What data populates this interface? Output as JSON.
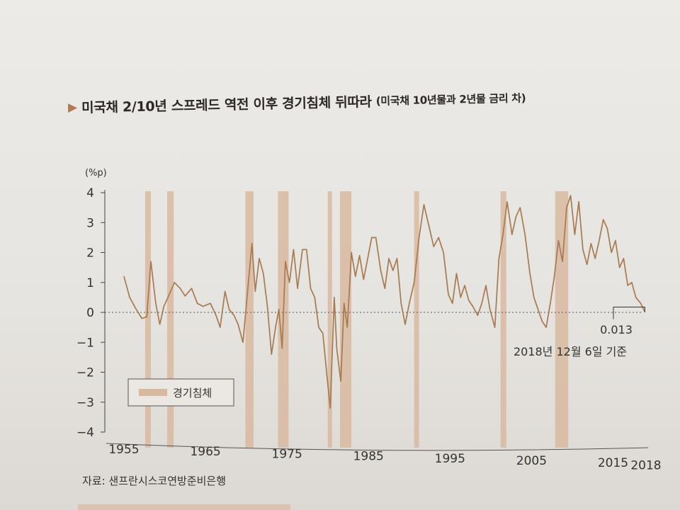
{
  "title": {
    "marker": "▶",
    "main": "미국채 2/10년 스프레드 역전 이후 경기침체 뒤따라",
    "sub": "(미국채 10년물과 2년물 금리 차)"
  },
  "source": "자료: 샌프란시스코연방준비은행",
  "chart_data": {
    "type": "line",
    "title": "미국채 2/10년 스프레드 역전 이후 경기침체 뒤따라",
    "subtitle": "(미국채 10년물과 2년물 금리 차)",
    "unit_label": "(%p)",
    "ylim": [
      -4,
      4
    ],
    "xlim": [
      1955,
      2018
    ],
    "yticks": [
      "4",
      "3",
      "2",
      "1",
      "0",
      "−1",
      "−2",
      "−3",
      "−4"
    ],
    "ytick_values": [
      4,
      3,
      2,
      1,
      0,
      -1,
      -2,
      -3,
      -4
    ],
    "xticks": [
      "1955",
      "1965",
      "1975",
      "1985",
      "1995",
      "2005",
      "2015",
      "2018"
    ],
    "xtick_values": [
      1955,
      1965,
      1975,
      1985,
      1995,
      2005,
      2015,
      2018
    ],
    "zero_line": "dotted",
    "legend": {
      "label": "경기침체",
      "placement": "bottom-left"
    },
    "annotation": {
      "value": "0.013",
      "note": "2018년 12월 6일 기준",
      "x": 2018.9,
      "y": 0.013
    },
    "colors": {
      "line": "#a77a4f",
      "recession": "#d8b9a0",
      "axis": "#444444"
    },
    "recessions": [
      [
        1957.6,
        1958.3
      ],
      [
        1960.3,
        1961.1
      ],
      [
        1969.9,
        1970.9
      ],
      [
        1973.9,
        1975.2
      ],
      [
        1980.0,
        1980.5
      ],
      [
        1981.5,
        1982.9
      ],
      [
        1990.6,
        1991.2
      ],
      [
        2001.2,
        2001.9
      ],
      [
        2007.9,
        2009.5
      ]
    ],
    "series": [
      {
        "x": [
          1955.0,
          1955.7,
          1956.5,
          1957.2,
          1957.8,
          1958.3,
          1958.9,
          1959.4,
          1959.9,
          1960.4,
          1961.2,
          1961.9,
          1962.5,
          1963.3,
          1964.0,
          1964.7,
          1965.6,
          1966.3,
          1966.8,
          1967.4,
          1967.9,
          1968.5,
          1969.0,
          1969.6,
          1970.2,
          1970.7,
          1971.1,
          1971.6,
          1972.1,
          1972.6,
          1973.1,
          1973.6,
          1974.0,
          1974.4,
          1974.8,
          1975.3,
          1975.8,
          1976.3,
          1976.9,
          1977.4,
          1977.9,
          1978.4,
          1978.9,
          1979.4,
          1979.9,
          1980.3,
          1980.8,
          1981.1,
          1981.6,
          1982.0,
          1982.4,
          1982.9,
          1983.4,
          1983.9,
          1984.4,
          1984.9,
          1985.4,
          1985.9,
          1986.5,
          1987.0,
          1987.5,
          1988.0,
          1988.5,
          1989.0,
          1989.5,
          1990.0,
          1990.6,
          1991.2,
          1991.8,
          1992.4,
          1993.0,
          1993.6,
          1994.2,
          1994.8,
          1995.3,
          1995.8,
          1996.3,
          1996.8,
          1997.3,
          1997.8,
          1998.4,
          1998.9,
          1999.4,
          1999.9,
          2000.5,
          2001.0,
          2001.5,
          2002.0,
          2002.6,
          2003.1,
          2003.6,
          2004.2,
          2004.8,
          2005.3,
          2005.8,
          2006.3,
          2006.8,
          2007.3,
          2007.8,
          2008.3,
          2008.8,
          2009.3,
          2009.8,
          2010.3,
          2010.8,
          2011.3,
          2011.8,
          2012.3,
          2012.8,
          2013.3,
          2013.8,
          2014.3,
          2014.8,
          2015.3,
          2015.8,
          2016.3,
          2016.8,
          2017.3,
          2017.8,
          2018.4,
          2018.9
        ],
        "y": [
          1.2,
          0.5,
          0.1,
          -0.2,
          -0.15,
          1.7,
          0.3,
          -0.4,
          0.2,
          0.5,
          1.0,
          0.8,
          0.55,
          0.8,
          0.3,
          0.2,
          0.3,
          -0.1,
          -0.5,
          0.7,
          0.1,
          -0.1,
          -0.4,
          -1.0,
          0.8,
          2.3,
          0.7,
          1.8,
          1.3,
          0.2,
          -1.4,
          -0.5,
          0.1,
          -1.2,
          1.7,
          1.0,
          2.1,
          0.8,
          2.1,
          2.1,
          0.8,
          0.5,
          -0.5,
          -0.7,
          -2.1,
          -3.2,
          0.5,
          -1.2,
          -2.3,
          0.3,
          -0.5,
          2.0,
          1.2,
          1.9,
          1.1,
          1.8,
          2.5,
          2.5,
          1.4,
          0.8,
          1.8,
          1.4,
          1.8,
          0.3,
          -0.4,
          0.3,
          1.0,
          2.5,
          3.6,
          2.9,
          2.2,
          2.5,
          2.0,
          0.6,
          0.3,
          1.3,
          0.5,
          0.9,
          0.4,
          0.2,
          -0.1,
          0.3,
          0.9,
          0.1,
          -0.5,
          1.8,
          2.6,
          3.7,
          2.6,
          3.2,
          3.5,
          2.6,
          1.3,
          0.5,
          0.1,
          -0.3,
          -0.5,
          0.3,
          1.2,
          2.4,
          1.7,
          3.5,
          3.9,
          2.6,
          3.7,
          2.1,
          1.6,
          2.3,
          1.8,
          2.4,
          3.1,
          2.8,
          2.0,
          2.4,
          1.5,
          1.8,
          0.9,
          1.0,
          0.5,
          0.3,
          0.013
        ]
      }
    ]
  }
}
